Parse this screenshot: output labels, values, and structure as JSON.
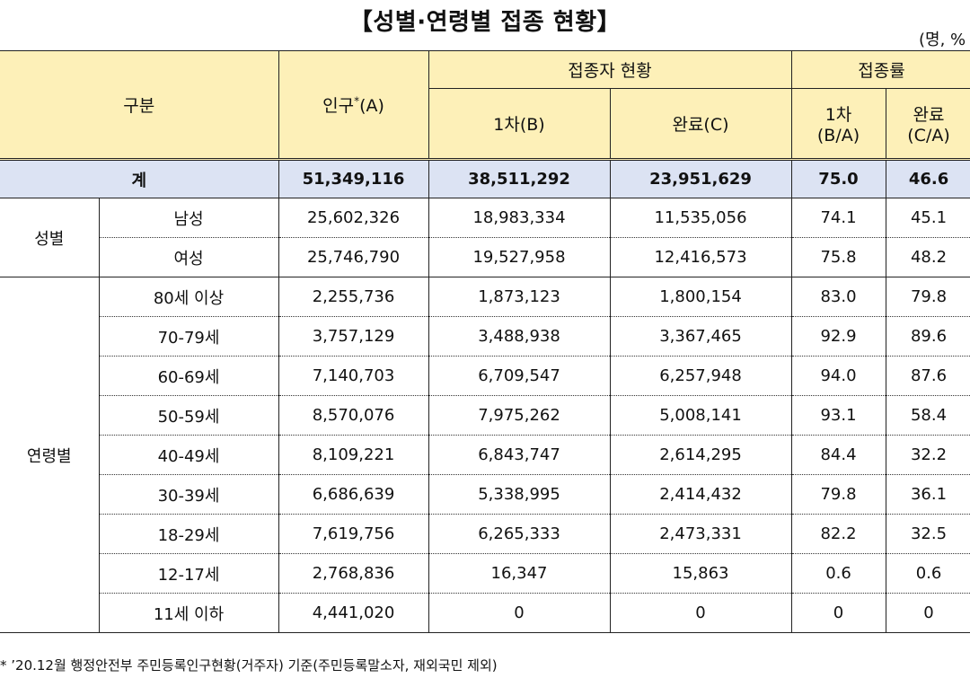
{
  "title": "【성별·연령별 접종 현황】",
  "unit": "(명, %",
  "header": {
    "gubun": "구분",
    "population": "인구",
    "population_star": "*",
    "population_suffix": "(A)",
    "vaccinated_group": "접종자 현황",
    "first_dose": "1차(B)",
    "completed": "완료(C)",
    "rate_group": "접종률",
    "rate_first_l1": "1차",
    "rate_first_l2": "(B/A)",
    "rate_complete_l1": "완료",
    "rate_complete_l2": "(C/A)"
  },
  "total": {
    "label": "계",
    "population": "51,349,116",
    "first": "38,511,292",
    "completed": "23,951,629",
    "rate_first": "75.0",
    "rate_completed": "46.6"
  },
  "sex_group": {
    "label": "성별",
    "rows": [
      {
        "label": "남성",
        "population": "25,602,326",
        "first": "18,983,334",
        "completed": "11,535,056",
        "rate_first": "74.1",
        "rate_completed": "45.1"
      },
      {
        "label": "여성",
        "population": "25,746,790",
        "first": "19,527,958",
        "completed": "12,416,573",
        "rate_first": "75.8",
        "rate_completed": "48.2"
      }
    ]
  },
  "age_group": {
    "label": "연령별",
    "rows": [
      {
        "label": "80세 이상",
        "population": "2,255,736",
        "first": "1,873,123",
        "completed": "1,800,154",
        "rate_first": "83.0",
        "rate_completed": "79.8"
      },
      {
        "label": "70-79세",
        "population": "3,757,129",
        "first": "3,488,938",
        "completed": "3,367,465",
        "rate_first": "92.9",
        "rate_completed": "89.6"
      },
      {
        "label": "60-69세",
        "population": "7,140,703",
        "first": "6,709,547",
        "completed": "6,257,948",
        "rate_first": "94.0",
        "rate_completed": "87.6"
      },
      {
        "label": "50-59세",
        "population": "8,570,076",
        "first": "7,975,262",
        "completed": "5,008,141",
        "rate_first": "93.1",
        "rate_completed": "58.4"
      },
      {
        "label": "40-49세",
        "population": "8,109,221",
        "first": "6,843,747",
        "completed": "2,614,295",
        "rate_first": "84.4",
        "rate_completed": "32.2"
      },
      {
        "label": "30-39세",
        "population": "6,686,639",
        "first": "5,338,995",
        "completed": "2,414,432",
        "rate_first": "79.8",
        "rate_completed": "36.1"
      },
      {
        "label": "18-29세",
        "population": "7,619,756",
        "first": "6,265,333",
        "completed": "2,473,331",
        "rate_first": "82.2",
        "rate_completed": "32.5"
      },
      {
        "label": "12-17세",
        "population": "2,768,836",
        "first": "16,347",
        "completed": "15,863",
        "rate_first": "0.6",
        "rate_completed": "0.6"
      },
      {
        "label": "11세 이하",
        "population": "4,441,020",
        "first": "0",
        "completed": "0",
        "rate_first": "0",
        "rate_completed": "0"
      }
    ]
  },
  "footnote": "* ’20.12월 행정안전부 주민등록인구현황(거주자) 기준(주민등록말소자, 재외국민 제외)"
}
